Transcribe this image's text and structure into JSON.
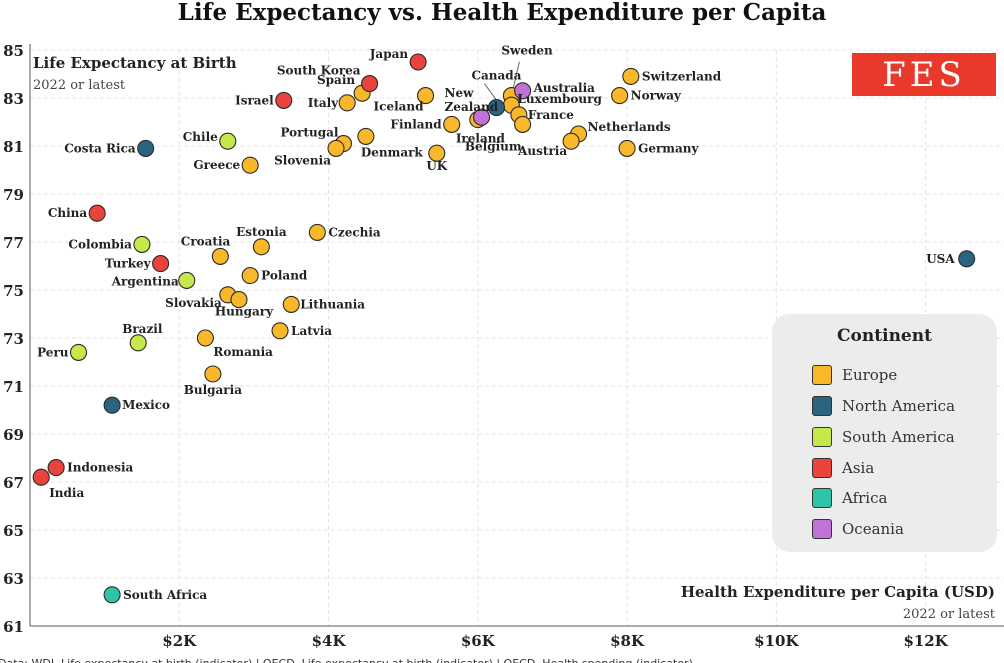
{
  "page": {
    "title": "Life Expectancy vs. Health Expenditure per Capita"
  },
  "brand": {
    "logo_text": "FES",
    "color": "#e8392b"
  },
  "y_axis": {
    "title": "Life Expectancy at Birth",
    "subtitle": "2022 or latest"
  },
  "x_axis": {
    "title": "Health Expenditure per Capita (USD)",
    "subtitle": "2022 or latest"
  },
  "source_note": "Data: WDI, Life expectancy at birth (indicator) | OECD, Life expectancy at birth (indicator) | OECD, Health spending (indicator)",
  "legend": {
    "title": "Continent",
    "items": [
      {
        "label": "Europe",
        "color": "#f9b72a"
      },
      {
        "label": "North America",
        "color": "#2a6480"
      },
      {
        "label": "South America",
        "color": "#c5e84a"
      },
      {
        "label": "Asia",
        "color": "#e8433c"
      },
      {
        "label": "Africa",
        "color": "#2ec4a8"
      },
      {
        "label": "Oceania",
        "color": "#c072d6"
      }
    ]
  },
  "chart_data": {
    "type": "scatter",
    "title": "Life Expectancy vs. Health Expenditure per Capita",
    "xlabel": "Health Expenditure per Capita (USD)",
    "ylabel": "Life Expectancy at Birth",
    "xlim": [
      0,
      13050
    ],
    "ylim": [
      61,
      85
    ],
    "x_ticks": [
      {
        "value": 2000,
        "label": "$2K"
      },
      {
        "value": 4000,
        "label": "$4K"
      },
      {
        "value": 6000,
        "label": "$6K"
      },
      {
        "value": 8000,
        "label": "$8K"
      },
      {
        "value": 10000,
        "label": "$10K"
      },
      {
        "value": 12000,
        "label": "$12K"
      }
    ],
    "y_ticks": [
      61,
      63,
      65,
      67,
      69,
      71,
      73,
      75,
      77,
      79,
      81,
      83,
      85
    ],
    "grid": true,
    "legend_position": "right",
    "series": [
      {
        "name": "Europe",
        "color": "#f9b72a",
        "points": [
          {
            "label": "Switzerland",
            "x": 8050,
            "y": 83.9
          },
          {
            "label": "Norway",
            "x": 7900,
            "y": 83.1
          },
          {
            "label": "Netherlands",
            "x": 7350,
            "y": 81.5
          },
          {
            "label": "Austria",
            "x": 7250,
            "y": 81.2
          },
          {
            "label": "Germany",
            "x": 8000,
            "y": 80.9
          },
          {
            "label": "Iceland",
            "x": 5300,
            "y": 83.1
          },
          {
            "label": "Spain",
            "x": 4450,
            "y": 83.2
          },
          {
            "label": "Italy",
            "x": 4250,
            "y": 82.8
          },
          {
            "label": "Portugal",
            "x": 4200,
            "y": 81.1
          },
          {
            "label": "Slovenia",
            "x": 4100,
            "y": 80.9
          },
          {
            "label": "Denmark",
            "x": 4500,
            "y": 81.4
          },
          {
            "label": "Finland",
            "x": 5650,
            "y": 81.9
          },
          {
            "label": "UK",
            "x": 5450,
            "y": 80.7
          },
          {
            "label": "Ireland",
            "x": 6000,
            "y": 82.1
          },
          {
            "label": "Sweden",
            "x": 6450,
            "y": 83.1
          },
          {
            "label": "Luxembourg",
            "x": 6450,
            "y": 82.7
          },
          {
            "label": "France",
            "x": 6550,
            "y": 82.3
          },
          {
            "label": "Belgium",
            "x": 6600,
            "y": 81.9
          },
          {
            "label": "Greece",
            "x": 2950,
            "y": 80.2
          },
          {
            "label": "Czechia",
            "x": 3850,
            "y": 77.4
          },
          {
            "label": "Estonia",
            "x": 3100,
            "y": 76.8
          },
          {
            "label": "Croatia",
            "x": 2550,
            "y": 76.4
          },
          {
            "label": "Poland",
            "x": 2950,
            "y": 75.6
          },
          {
            "label": "Lithuania",
            "x": 3500,
            "y": 74.4
          },
          {
            "label": "Slovakia",
            "x": 2650,
            "y": 74.8
          },
          {
            "label": "Hungary",
            "x": 2800,
            "y": 74.6
          },
          {
            "label": "Latvia",
            "x": 3350,
            "y": 73.3
          },
          {
            "label": "Romania",
            "x": 2350,
            "y": 73.0
          },
          {
            "label": "Bulgaria",
            "x": 2450,
            "y": 71.5
          }
        ]
      },
      {
        "name": "North America",
        "color": "#2a6480",
        "points": [
          {
            "label": "USA",
            "x": 12550,
            "y": 76.3
          },
          {
            "label": "Canada",
            "x": 6250,
            "y": 82.6
          },
          {
            "label": "Costa Rica",
            "x": 1550,
            "y": 80.9
          },
          {
            "label": "Mexico",
            "x": 1100,
            "y": 70.2
          }
        ]
      },
      {
        "name": "South America",
        "color": "#c5e84a",
        "points": [
          {
            "label": "Chile",
            "x": 2650,
            "y": 81.2
          },
          {
            "label": "Colombia",
            "x": 1500,
            "y": 76.9
          },
          {
            "label": "Argentina",
            "x": 2100,
            "y": 75.4
          },
          {
            "label": "Brazil",
            "x": 1450,
            "y": 72.8
          },
          {
            "label": "Peru",
            "x": 650,
            "y": 72.4
          }
        ]
      },
      {
        "name": "Asia",
        "color": "#e8433c",
        "points": [
          {
            "label": "Japan",
            "x": 5200,
            "y": 84.5
          },
          {
            "label": "South Korea",
            "x": 4550,
            "y": 83.6
          },
          {
            "label": "Israel",
            "x": 3400,
            "y": 82.9
          },
          {
            "label": "China",
            "x": 900,
            "y": 78.2
          },
          {
            "label": "Turkey",
            "x": 1750,
            "y": 76.1
          },
          {
            "label": "Indonesia",
            "x": 350,
            "y": 67.6
          },
          {
            "label": "India",
            "x": 150,
            "y": 67.2
          }
        ]
      },
      {
        "name": "Africa",
        "color": "#2ec4a8",
        "points": [
          {
            "label": "South Africa",
            "x": 1100,
            "y": 62.3
          }
        ]
      },
      {
        "name": "Oceania",
        "color": "#c072d6",
        "points": [
          {
            "label": "Australia",
            "x": 6600,
            "y": 83.3
          },
          {
            "label": "New Zealand",
            "x": 6050,
            "y": 82.2
          }
        ]
      }
    ]
  }
}
